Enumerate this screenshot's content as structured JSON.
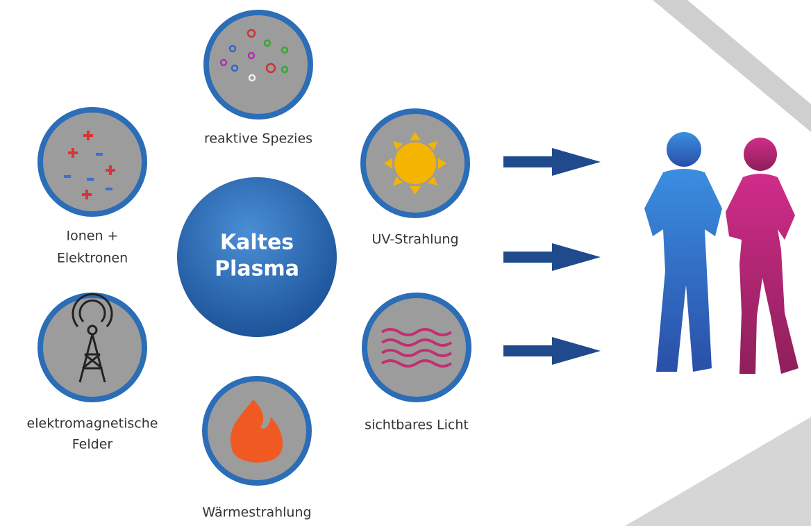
{
  "center": {
    "lines": [
      "Kaltes",
      "Plasma"
    ]
  },
  "nodes": [
    {
      "lines": [
        "reaktive Spezies"
      ]
    },
    {
      "lines": [
        "Ionen +",
        "Elektronen"
      ]
    },
    {
      "lines": [
        "UV-Strahlung"
      ]
    },
    {
      "lines": [
        "elektromagnetische",
        "Felder"
      ]
    },
    {
      "lines": [
        "Wärmestrahlung"
      ]
    },
    {
      "lines": [
        "sichtbares Licht"
      ]
    }
  ]
}
